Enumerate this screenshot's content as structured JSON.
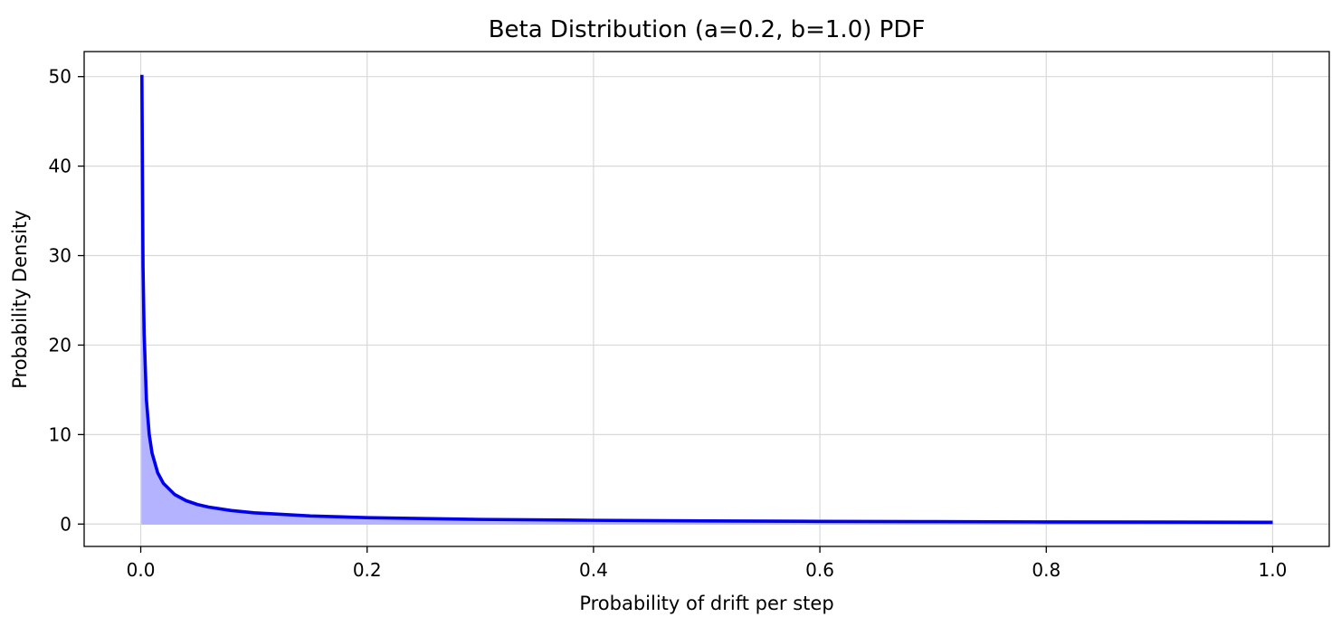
{
  "chart_data": {
    "type": "line",
    "title": "Beta Distribution (a=0.2, b=1.0) PDF",
    "xlabel": "Probability of drift per step",
    "ylabel": "Probability Density",
    "xlim": [
      -0.05,
      1.05
    ],
    "ylim": [
      -2.5,
      52.8
    ],
    "xticks": [
      0.0,
      0.2,
      0.4,
      0.6,
      0.8,
      1.0
    ],
    "xtick_labels": [
      "0.0",
      "0.2",
      "0.4",
      "0.6",
      "0.8",
      "1.0"
    ],
    "yticks": [
      0,
      10,
      20,
      30,
      40,
      50
    ],
    "ytick_labels": [
      "0",
      "10",
      "20",
      "30",
      "40",
      "50"
    ],
    "grid": true,
    "fill_under_curve": true,
    "series": [
      {
        "line_color": "#0000ee",
        "fill_color": "#b3b3ff",
        "x": [
          0.001,
          0.002,
          0.003,
          0.005,
          0.0075,
          0.01,
          0.015,
          0.02,
          0.03,
          0.04,
          0.05,
          0.06,
          0.08,
          0.1,
          0.15,
          0.2,
          0.3,
          0.4,
          0.5,
          0.6,
          0.7,
          0.8,
          0.9,
          1.0
        ],
        "y": [
          50.2,
          28.8,
          21.3,
          13.9,
          10.0,
          7.92,
          5.73,
          4.55,
          3.3,
          2.62,
          2.19,
          1.9,
          1.51,
          1.26,
          0.91,
          0.72,
          0.52,
          0.42,
          0.35,
          0.3,
          0.27,
          0.24,
          0.22,
          0.2
        ]
      }
    ]
  }
}
